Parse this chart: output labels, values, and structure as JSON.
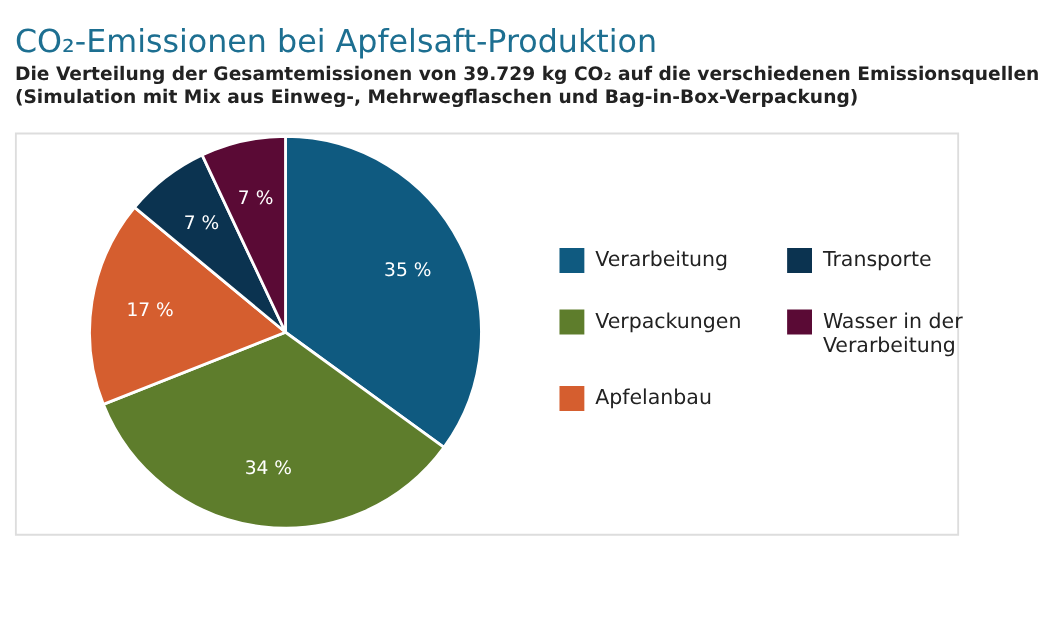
{
  "chart_data": {
    "type": "pie",
    "title": "CO₂-Emissionen bei Apfelsaft-Produktion",
    "subtitle": [
      "Die Verteilung der Gesamtemissionen von 39.729 kg CO₂ auf die verschiedenen Emissionsquellen",
      "(Simulation mit Mix aus Einweg-, Mehrwegflaschen und Bag-in-Box-Verpackung)"
    ],
    "categories": [
      "Verarbeitung",
      "Verpackungen",
      "Apfelanbau",
      "Transporte",
      "Wasser in der Verarbeitung"
    ],
    "values": [
      35,
      34,
      17,
      7,
      7
    ],
    "value_labels": [
      "35 %",
      "34 %",
      "17 %",
      "7 %",
      "7 %"
    ],
    "colors": [
      "#0f5a80",
      "#5e7d2c",
      "#d55e2f",
      "#0b3350",
      "#5a0a35"
    ],
    "legend": "right"
  }
}
